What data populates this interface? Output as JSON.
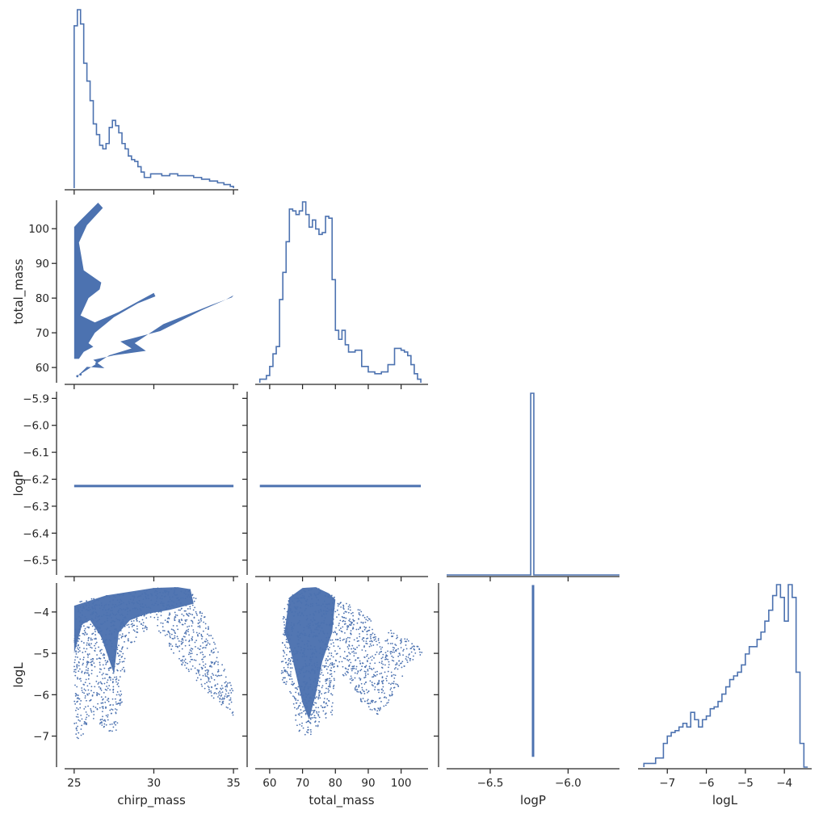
{
  "colors": {
    "series": "#4c72b0",
    "axis": "#262626",
    "background": "#ffffff"
  },
  "variables": [
    "chirp_mass",
    "total_mass",
    "logP",
    "logL"
  ],
  "chart_data": {
    "type": "scatter",
    "layout": "corner-pairplot",
    "grid": false,
    "axes": {
      "chirp_mass": {
        "label": "chirp_mass",
        "range": [
          24.4,
          35.3
        ],
        "ticks": [
          25,
          30,
          35
        ]
      },
      "total_mass": {
        "label": "total_mass",
        "range": [
          55.6,
          108.2
        ],
        "ticks": [
          60,
          70,
          80,
          90,
          100
        ]
      },
      "logP": {
        "label": "logP",
        "range": [
          -6.555,
          -5.875
        ],
        "ticks": [
          -6.5,
          -6.4,
          -6.3,
          -6.2,
          -6.1,
          -6.0,
          -5.9
        ],
        "xrange": [
          -6.78,
          -5.67
        ],
        "xticks": [
          -6.5,
          -6.0
        ]
      },
      "logL": {
        "label": "logL",
        "range": [
          -7.75,
          -3.3
        ],
        "ticks": [
          -7,
          -6,
          -5,
          -4
        ]
      }
    },
    "tick_text": {
      "chirp_mass": [
        "25",
        "30",
        "35"
      ],
      "total_mass": [
        "60",
        "70",
        "80",
        "90",
        "100"
      ],
      "logP": [
        "−6.5",
        "−6.4",
        "−6.3",
        "−6.2",
        "−6.1",
        "−6.0",
        "−5.9"
      ],
      "logP_x": [
        "−6.5",
        "−6.0"
      ],
      "logL": [
        "−7",
        "−6",
        "−5",
        "−4"
      ]
    },
    "diagonal": [
      {
        "variable": "chirp_mass",
        "type": "histogram",
        "bins": [
          25.0,
          25.2,
          25.4,
          25.6,
          25.8,
          26.0,
          26.2,
          26.4,
          26.6,
          26.8,
          27.0,
          27.2,
          27.4,
          27.6,
          27.8,
          28.0,
          28.2,
          28.4,
          28.6,
          28.8,
          29.0,
          29.2,
          29.4,
          29.6,
          29.8,
          30.0,
          30.5,
          31.0,
          31.5,
          32.0,
          32.5,
          33.0,
          33.5,
          34.0,
          34.4,
          34.8,
          35.0
        ],
        "counts": [
          0.91,
          1.0,
          0.92,
          0.7,
          0.6,
          0.49,
          0.36,
          0.3,
          0.24,
          0.22,
          0.25,
          0.34,
          0.38,
          0.35,
          0.31,
          0.25,
          0.22,
          0.18,
          0.16,
          0.15,
          0.12,
          0.09,
          0.06,
          0.06,
          0.08,
          0.08,
          0.07,
          0.08,
          0.07,
          0.07,
          0.06,
          0.05,
          0.04,
          0.03,
          0.02,
          0.01
        ]
      },
      {
        "variable": "total_mass",
        "type": "histogram",
        "bins": [
          57,
          59,
          60,
          61,
          62,
          63,
          64,
          65,
          66,
          67,
          68,
          69,
          70,
          71,
          72,
          73,
          74,
          75,
          76,
          77,
          78,
          79,
          80,
          81,
          82,
          83,
          84,
          86,
          88,
          90,
          92,
          94,
          96,
          98,
          100,
          101,
          102,
          103,
          104,
          105,
          106
        ],
        "counts": [
          0.02,
          0.04,
          0.09,
          0.16,
          0.2,
          0.46,
          0.61,
          0.78,
          0.96,
          0.95,
          0.93,
          0.95,
          1.0,
          0.93,
          0.86,
          0.9,
          0.85,
          0.82,
          0.83,
          0.92,
          0.91,
          0.57,
          0.29,
          0.24,
          0.29,
          0.21,
          0.17,
          0.18,
          0.09,
          0.06,
          0.05,
          0.06,
          0.1,
          0.19,
          0.18,
          0.17,
          0.15,
          0.1,
          0.05,
          0.02
        ]
      },
      {
        "variable": "logP",
        "type": "histogram",
        "bins": [
          -6.78,
          -6.24,
          -6.22,
          -5.67
        ],
        "counts": [
          0.0,
          1.0,
          0.0
        ]
      },
      {
        "variable": "logL",
        "type": "histogram",
        "bins": [
          -7.6,
          -7.3,
          -7.1,
          -7.0,
          -6.9,
          -6.8,
          -6.7,
          -6.6,
          -6.5,
          -6.4,
          -6.3,
          -6.2,
          -6.1,
          -6.0,
          -5.9,
          -5.8,
          -5.7,
          -5.6,
          -5.5,
          -5.4,
          -5.3,
          -5.2,
          -5.1,
          -5.0,
          -4.9,
          -4.8,
          -4.7,
          -4.6,
          -4.5,
          -4.4,
          -4.3,
          -4.2,
          -4.1,
          -4.0,
          -3.9,
          -3.8,
          -3.7,
          -3.6,
          -3.5,
          -3.4
        ],
        "counts": [
          0.02,
          0.05,
          0.13,
          0.17,
          0.19,
          0.2,
          0.22,
          0.24,
          0.22,
          0.3,
          0.26,
          0.22,
          0.26,
          0.28,
          0.32,
          0.33,
          0.36,
          0.4,
          0.44,
          0.48,
          0.5,
          0.52,
          0.56,
          0.62,
          0.66,
          0.66,
          0.7,
          0.74,
          0.8,
          0.86,
          0.94,
          1.0,
          0.93,
          0.8,
          1.0,
          0.93,
          0.52,
          0.13,
          0.0
        ]
      }
    ],
    "scatter_panels": [
      {
        "x": "chirp_mass",
        "y": "total_mass"
      },
      {
        "x": "chirp_mass",
        "y": "logP"
      },
      {
        "x": "total_mass",
        "y": "logP"
      },
      {
        "x": "chirp_mass",
        "y": "logL"
      },
      {
        "x": "total_mass",
        "y": "logL"
      },
      {
        "x": "logP",
        "y": "logL"
      }
    ],
    "structures": {
      "chirp_mass_vs_total_mass": {
        "upper_band": [
          [
            25.0,
            62.5
          ],
          [
            25.0,
            100.5
          ],
          [
            25.3,
            102
          ],
          [
            26.5,
            107.5
          ],
          [
            26.8,
            106
          ],
          [
            25.8,
            101
          ],
          [
            25.3,
            96
          ],
          [
            25.6,
            88
          ],
          [
            26.7,
            84.5
          ],
          [
            26.6,
            82.5
          ],
          [
            25.9,
            80
          ],
          [
            25.4,
            75
          ],
          [
            26.3,
            73
          ],
          [
            27.8,
            76
          ],
          [
            29.2,
            79.5
          ],
          [
            30.0,
            81.5
          ],
          [
            30.1,
            80.5
          ],
          [
            29.0,
            78.5
          ],
          [
            27.5,
            74.5
          ],
          [
            26.3,
            70
          ],
          [
            25.9,
            67
          ],
          [
            26.2,
            66
          ],
          [
            25.6,
            64.5
          ],
          [
            25.3,
            62.5
          ]
        ],
        "lower_band": [
          [
            25.2,
            57.5
          ],
          [
            27.2,
            63.5
          ],
          [
            28.6,
            65.5
          ],
          [
            27.9,
            67.5
          ],
          [
            30.4,
            70.5
          ],
          [
            33.0,
            76.5
          ],
          [
            34.5,
            79.5
          ],
          [
            35.0,
            80.8
          ],
          [
            34.9,
            80.2
          ],
          [
            33.6,
            78.0
          ],
          [
            30.6,
            72.5
          ],
          [
            28.8,
            67.0
          ],
          [
            29.5,
            64.8
          ],
          [
            27.5,
            63.5
          ],
          [
            26.2,
            62.2
          ],
          [
            26.9,
            59.8
          ],
          [
            25.8,
            60.2
          ]
        ],
        "points": [
          [
            25.2,
            57.5
          ],
          [
            25.4,
            58.0
          ],
          [
            26.4,
            61.2
          ],
          [
            26.6,
            60.4
          ]
        ]
      },
      "logP_constant": -6.225,
      "chirp_mass_vs_logL_outline": [
        [
          25.0,
          -6.9
        ],
        [
          25.0,
          -3.85
        ],
        [
          25.5,
          -3.7
        ],
        [
          27.0,
          -3.6
        ],
        [
          28.5,
          -3.55
        ],
        [
          30.0,
          -3.42
        ],
        [
          31.5,
          -3.4
        ],
        [
          32.3,
          -3.45
        ],
        [
          33.0,
          -3.9
        ],
        [
          34.0,
          -4.9
        ],
        [
          35.0,
          -5.9
        ],
        [
          35.0,
          -6.5
        ],
        [
          34.0,
          -6.2
        ],
        [
          33.0,
          -5.8
        ],
        [
          31.5,
          -5.2
        ],
        [
          30.8,
          -4.7
        ],
        [
          30.0,
          -4.3
        ],
        [
          29.0,
          -4.6
        ],
        [
          28.3,
          -5.0
        ],
        [
          28.0,
          -6.2
        ],
        [
          27.6,
          -7.0
        ],
        [
          26.8,
          -6.8
        ],
        [
          26.0,
          -6.5
        ],
        [
          25.4,
          -7.2
        ]
      ],
      "total_mass_vs_logL_outline": [
        [
          63.5,
          -5.6
        ],
        [
          64.0,
          -4.0
        ],
        [
          66.0,
          -3.65
        ],
        [
          70.0,
          -3.42
        ],
        [
          74.0,
          -3.4
        ],
        [
          78.0,
          -3.55
        ],
        [
          80.0,
          -3.65
        ],
        [
          84.0,
          -3.75
        ],
        [
          88.0,
          -3.95
        ],
        [
          91.0,
          -4.2
        ],
        [
          93.0,
          -4.6
        ],
        [
          95.0,
          -4.65
        ],
        [
          97.0,
          -4.4
        ],
        [
          99.0,
          -4.5
        ],
        [
          102.0,
          -4.6
        ],
        [
          106.0,
          -4.9
        ],
        [
          106.5,
          -5.0
        ],
        [
          102.0,
          -5.3
        ],
        [
          97.0,
          -6.2
        ],
        [
          93.0,
          -6.5
        ],
        [
          88.0,
          -6.2
        ],
        [
          85.0,
          -5.8
        ],
        [
          82.0,
          -5.5
        ],
        [
          80.0,
          -5.6
        ],
        [
          79.0,
          -6.5
        ],
        [
          76.0,
          -6.6
        ],
        [
          73.0,
          -7.0
        ],
        [
          70.0,
          -7.0
        ],
        [
          68.0,
          -6.8
        ],
        [
          66.0,
          -6.0
        ]
      ],
      "logP_vs_logL_range": [
        -7.5,
        -3.35
      ]
    }
  }
}
